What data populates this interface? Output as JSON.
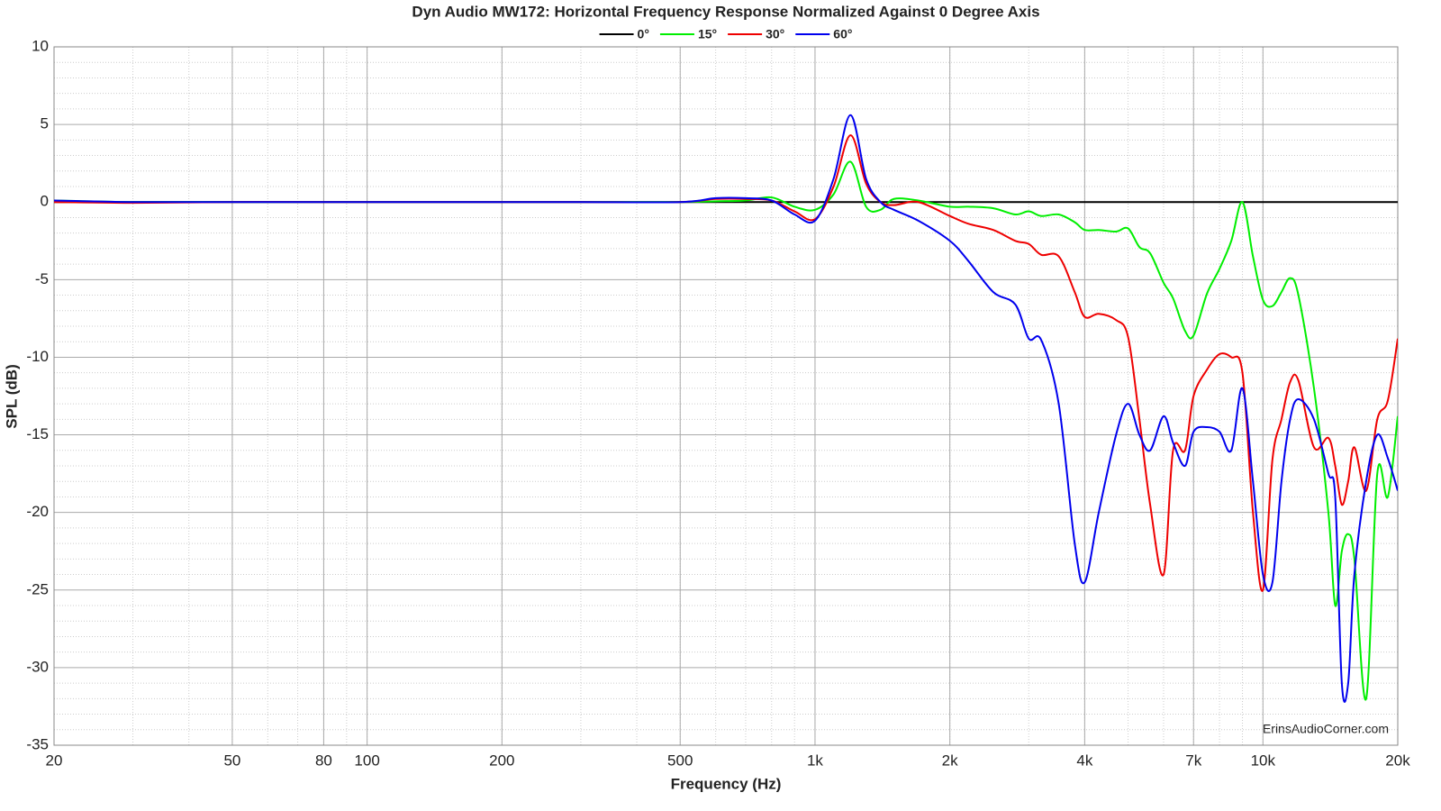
{
  "chart_data": {
    "type": "line",
    "title": "Dyn Audio MW172: Horizontal Frequency Response Normalized Against 0 Degree Axis",
    "x_label": "Frequency (Hz)",
    "y_label": "SPL (dB)",
    "watermark": "ErinsAudioCorner.com",
    "xscale": "log",
    "grid": true,
    "minor_grid": true,
    "legend": "top",
    "xlim": [
      20,
      20000
    ],
    "ylim": [
      -35,
      10
    ],
    "xticks": [
      20,
      50,
      80,
      100,
      200,
      500,
      {
        "value": 1000,
        "label": "1k"
      },
      {
        "value": 2000,
        "label": "2k"
      },
      {
        "value": 4000,
        "label": "4k"
      },
      {
        "value": 7000,
        "label": "7k"
      },
      {
        "value": 10000,
        "label": "10k"
      },
      {
        "value": 20000,
        "label": "20k"
      }
    ],
    "yticks": [
      10,
      5,
      0,
      -5,
      -10,
      -15,
      -20,
      -25,
      -30,
      -35
    ],
    "x": [
      20,
      30,
      50,
      80,
      100,
      150,
      200,
      300,
      500,
      600,
      700,
      800,
      900,
      1000,
      1100,
      1200,
      1300,
      1400,
      1500,
      1700,
      2000,
      2200,
      2500,
      2800,
      3000,
      3200,
      3500,
      3800,
      4000,
      4300,
      4700,
      5000,
      5300,
      5600,
      6000,
      6300,
      6700,
      7000,
      7500,
      8000,
      8500,
      9000,
      9500,
      10000,
      10500,
      11000,
      11500,
      12000,
      13000,
      14000,
      14500,
      15000,
      15500,
      16000,
      17000,
      18000,
      19000,
      20000
    ],
    "series": [
      {
        "name": "0°",
        "color": "#000000",
        "values": [
          0,
          0,
          0,
          0,
          0,
          0,
          0,
          0,
          0,
          0,
          0,
          0,
          0,
          0,
          0,
          0,
          0,
          0,
          0,
          0,
          0,
          0,
          0,
          0,
          0,
          0,
          0,
          0,
          0,
          0,
          0,
          0,
          0,
          0,
          0,
          0,
          0,
          0,
          0,
          0,
          0,
          0,
          0,
          0,
          0,
          0,
          0,
          0,
          0,
          0,
          0,
          0,
          0,
          0,
          0,
          0,
          0,
          0
        ]
      },
      {
        "name": "15°",
        "color": "#00ee00",
        "values": [
          0.1,
          0,
          0,
          0,
          0,
          0,
          0,
          0,
          0,
          0.05,
          0.1,
          0.3,
          -0.3,
          -0.5,
          0.5,
          2.6,
          -0.3,
          -0.5,
          0.2,
          0.1,
          -0.3,
          -0.3,
          -0.4,
          -0.8,
          -0.6,
          -0.9,
          -0.8,
          -1.3,
          -1.8,
          -1.8,
          -1.9,
          -1.7,
          -2.9,
          -3.3,
          -5.2,
          -6.2,
          -8.3,
          -8.6,
          -5.9,
          -4.3,
          -2.5,
          0,
          -3.5,
          -6.3,
          -6.7,
          -5.8,
          -4.9,
          -6,
          -12,
          -20,
          -26,
          -22.5,
          -21.4,
          -23,
          -32,
          -17.5,
          -19,
          -13.8
        ]
      },
      {
        "name": "30°",
        "color": "#ee0000",
        "values": [
          0,
          -0.05,
          0,
          0,
          0,
          0,
          0,
          0,
          0,
          0.2,
          0.2,
          0.1,
          -0.6,
          -1.1,
          1.0,
          4.3,
          1.2,
          0,
          -0.2,
          0,
          -0.9,
          -1.4,
          -1.8,
          -2.5,
          -2.7,
          -3.4,
          -3.5,
          -5.8,
          -7.4,
          -7.2,
          -7.6,
          -8.7,
          -14,
          -19.5,
          -24,
          -16,
          -16,
          -12.5,
          -10.8,
          -9.8,
          -10,
          -11,
          -20,
          -25,
          -16.6,
          -14,
          -11.6,
          -11.5,
          -15.8,
          -15.2,
          -17,
          -19.5,
          -18,
          -15.8,
          -18.6,
          -14,
          -12.8,
          -8.8
        ]
      },
      {
        "name": "60°",
        "color": "#0000ee",
        "values": [
          0.1,
          0,
          0,
          0,
          0,
          0,
          0,
          0,
          0,
          0.25,
          0.25,
          0.1,
          -0.8,
          -1.2,
          1.5,
          5.6,
          1.5,
          0,
          -0.5,
          -1.2,
          -2.5,
          -3.8,
          -5.8,
          -6.6,
          -8.8,
          -8.9,
          -13,
          -22,
          -24.5,
          -20,
          -15,
          -13,
          -15,
          -16,
          -13.8,
          -15.5,
          -17,
          -14.8,
          -14.5,
          -14.8,
          -16,
          -12,
          -18,
          -24,
          -24.5,
          -18,
          -14,
          -12.7,
          -14,
          -17.5,
          -19,
          -31,
          -31,
          -24,
          -18,
          -15,
          -16.5,
          -18.6
        ]
      }
    ]
  }
}
